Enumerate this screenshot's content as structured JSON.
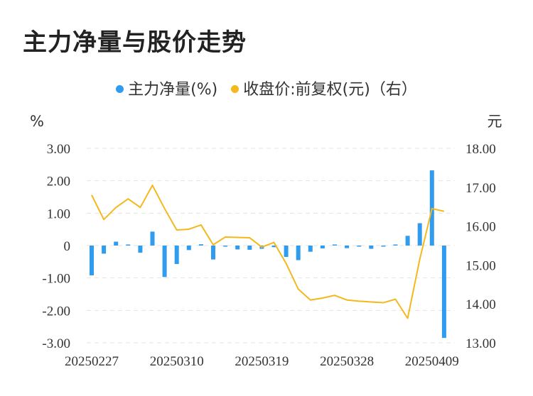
{
  "title": "主力净量与股价走势",
  "colors": {
    "bar": "#2f9cf0",
    "line": "#f5b81c",
    "grid": "#e3e3e3"
  },
  "chart_data": {
    "type": "bar+line",
    "legend_position": "top",
    "grid": true,
    "left_unit": "%",
    "right_unit": "元",
    "series": [
      {
        "name": "主力净量(%)",
        "type": "bar",
        "axis": "left"
      },
      {
        "name": "收盘价:前复权(元)（右）",
        "type": "line",
        "axis": "right"
      }
    ],
    "left_axis": {
      "min": -3,
      "max": 3,
      "ticks": [
        "3.00",
        "2.00",
        "1.00",
        "0",
        "-1.00",
        "-2.00",
        "-3.00"
      ]
    },
    "right_axis": {
      "min": 13,
      "max": 18,
      "ticks": [
        "18.00",
        "17.00",
        "16.00",
        "15.00",
        "14.00",
        "13.00"
      ]
    },
    "x_tick_labels": [
      "20250227",
      "20250310",
      "20250319",
      "20250328",
      "20250409"
    ],
    "x_tick_indices": [
      0,
      7,
      14,
      21,
      28
    ],
    "bar_values": [
      -0.92,
      -0.25,
      0.12,
      0.01,
      -0.22,
      0.43,
      -0.97,
      -0.57,
      -0.14,
      0.04,
      -0.43,
      -0.02,
      -0.12,
      -0.13,
      -0.1,
      -0.05,
      -0.35,
      -0.45,
      -0.19,
      -0.09,
      0.02,
      -0.08,
      -0.03,
      -0.1,
      -0.03,
      0.03,
      0.3,
      0.69,
      2.32,
      -2.85
    ],
    "line_values": [
      16.8,
      16.17,
      16.48,
      16.7,
      16.48,
      17.05,
      16.45,
      15.9,
      15.92,
      16.03,
      15.52,
      15.72,
      15.71,
      15.7,
      15.46,
      15.58,
      15.04,
      14.38,
      14.1,
      14.15,
      14.22,
      14.1,
      14.07,
      14.05,
      14.03,
      14.12,
      13.63,
      15.15,
      16.45,
      16.38
    ]
  }
}
